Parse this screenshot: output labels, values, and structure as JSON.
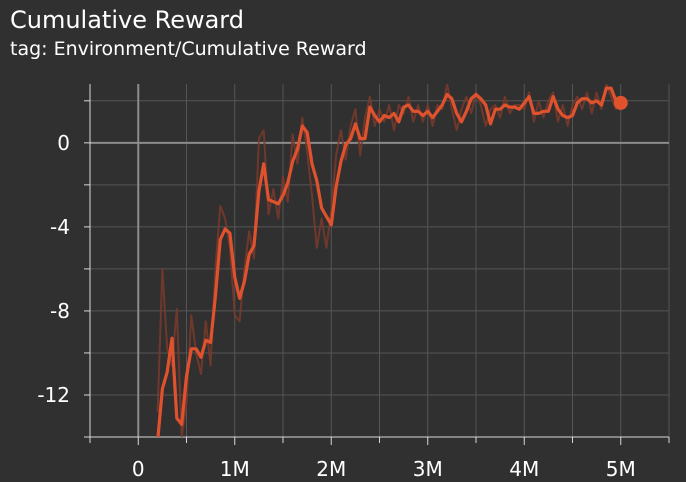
{
  "chart_data": {
    "type": "line",
    "title": "Cumulative Reward",
    "subtitle": "tag: Environment/Cumulative Reward",
    "xlabel": "",
    "ylabel": "",
    "xlim": [
      -500000,
      5500000
    ],
    "ylim": [
      -14,
      2.8
    ],
    "x_ticks": [
      0,
      1000000,
      2000000,
      3000000,
      4000000,
      5000000
    ],
    "x_tick_labels": [
      "0",
      "1M",
      "2M",
      "3M",
      "4M",
      "5M"
    ],
    "y_ticks": [
      0,
      -4,
      -8,
      -12
    ],
    "y_tick_labels": [
      "0",
      "-4",
      "-8",
      "-12"
    ],
    "grid": true,
    "legend": "none",
    "series": [
      {
        "color": "#e0522d",
        "raw_color": "#7a3a2c",
        "x": [
          200000,
          250000,
          300000,
          350000,
          400000,
          450000,
          500000,
          550000,
          600000,
          650000,
          700000,
          750000,
          800000,
          850000,
          900000,
          950000,
          1000000,
          1050000,
          1100000,
          1150000,
          1200000,
          1250000,
          1300000,
          1350000,
          1400000,
          1450000,
          1500000,
          1550000,
          1600000,
          1650000,
          1700000,
          1750000,
          1800000,
          1850000,
          1900000,
          1950000,
          2000000,
          2050000,
          2100000,
          2150000,
          2200000,
          2250000,
          2300000,
          2350000,
          2400000,
          2450000,
          2500000,
          2550000,
          2600000,
          2650000,
          2700000,
          2750000,
          2800000,
          2850000,
          2900000,
          2950000,
          3000000,
          3050000,
          3100000,
          3150000,
          3200000,
          3250000,
          3300000,
          3350000,
          3400000,
          3450000,
          3500000,
          3550000,
          3600000,
          3650000,
          3700000,
          3750000,
          3800000,
          3850000,
          3900000,
          3950000,
          4000000,
          4050000,
          4100000,
          4150000,
          4200000,
          4250000,
          4300000,
          4350000,
          4400000,
          4450000,
          4500000,
          4550000,
          4600000,
          4650000,
          4700000,
          4750000,
          4800000,
          4850000,
          4900000,
          4950000,
          5000000
        ],
        "values": [
          -14.2,
          -11.7,
          -10.9,
          -9.3,
          -13.1,
          -13.4,
          -11.1,
          -9.8,
          -9.8,
          -10.2,
          -9.4,
          -9.5,
          -7.3,
          -4.6,
          -4.1,
          -4.3,
          -6.4,
          -7.4,
          -6.6,
          -5.3,
          -4.9,
          -2.3,
          -1.0,
          -2.7,
          -2.8,
          -2.9,
          -2.5,
          -1.9,
          -0.9,
          -0.3,
          0.8,
          0.5,
          -1.0,
          -1.8,
          -3.1,
          -3.5,
          -3.9,
          -2.1,
          -0.9,
          -0.1,
          0.2,
          0.9,
          0.2,
          0.2,
          1.7,
          1.3,
          1.0,
          1.3,
          1.2,
          1.4,
          1.0,
          1.7,
          1.8,
          1.5,
          1.5,
          1.3,
          1.5,
          1.2,
          1.5,
          1.8,
          2.3,
          2.1,
          1.4,
          1.0,
          1.5,
          2.1,
          2.3,
          2.1,
          1.8,
          0.9,
          1.6,
          1.6,
          1.8,
          1.7,
          1.7,
          1.6,
          1.9,
          2.2,
          1.4,
          1.4,
          1.5,
          1.5,
          2.2,
          1.6,
          1.3,
          1.2,
          1.3,
          1.9,
          2.1,
          2.1,
          1.9,
          2.0,
          1.8,
          2.6,
          2.6,
          2.0,
          1.9
        ],
        "raw": [
          -12.8,
          -6.0,
          -9.8,
          -10.6,
          -7.9,
          -14.0,
          -12.4,
          -8.2,
          -10.0,
          -11.0,
          -8.5,
          -10.6,
          -6.0,
          -3.0,
          -3.6,
          -5.0,
          -8.2,
          -8.5,
          -6.0,
          -4.2,
          -5.5,
          0.2,
          0.6,
          -3.4,
          -2.2,
          -3.6,
          -1.6,
          -2.8,
          0.4,
          -1.0,
          1.2,
          -0.4,
          -2.5,
          -5.0,
          -3.6,
          -5.0,
          -3.2,
          -0.6,
          0.6,
          -0.8,
          0.8,
          1.6,
          -0.6,
          1.2,
          2.2,
          0.8,
          1.6,
          1.0,
          1.8,
          0.6,
          1.8,
          1.4,
          2.2,
          1.0,
          1.8,
          1.0,
          1.8,
          0.8,
          1.8,
          1.6,
          2.8,
          1.6,
          0.6,
          1.6,
          2.2,
          1.4,
          2.4,
          1.8,
          0.8,
          1.6,
          1.8,
          1.2,
          2.2,
          1.4,
          1.8,
          1.8,
          1.6,
          2.4,
          1.0,
          2.0,
          1.2,
          2.0,
          2.4,
          1.0,
          1.8,
          0.8,
          1.8,
          2.2,
          1.6,
          2.4,
          1.4,
          2.4,
          1.6,
          2.8,
          2.2,
          1.6,
          1.9
        ]
      }
    ]
  }
}
